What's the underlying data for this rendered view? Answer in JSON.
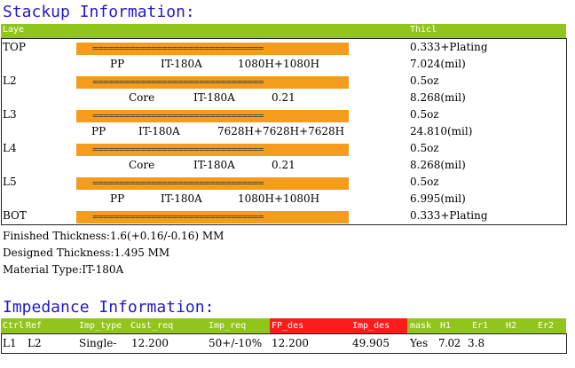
{
  "stackup": {
    "title": "Stackup Information:",
    "header": {
      "layer": "Laye",
      "thickness": "Thicl"
    },
    "rows": [
      {
        "layer": "TOP",
        "bar": "================================",
        "thickness": "0.333+Plating"
      },
      {
        "spec": [
          "PP",
          "IT-180A",
          "1080H+1080H"
        ],
        "thickness": "7.024(mil)"
      },
      {
        "layer": "L2",
        "bar": "================================",
        "thickness": "0.5oz"
      },
      {
        "spec": [
          "Core",
          "IT-180A",
          "0.21"
        ],
        "thickness": "8.268(mil)"
      },
      {
        "layer": "L3",
        "bar": "================================",
        "thickness": "0.5oz"
      },
      {
        "spec": [
          "PP",
          "IT-180A",
          "7628H+7628H+7628H"
        ],
        "thickness": "24.810(mil)"
      },
      {
        "layer": "L4",
        "bar": "================================",
        "thickness": "0.5oz"
      },
      {
        "spec": [
          "Core",
          "IT-180A",
          "0.21"
        ],
        "thickness": "8.268(mil)"
      },
      {
        "layer": "L5",
        "bar": "================================",
        "thickness": "0.5oz"
      },
      {
        "spec": [
          "PP",
          "IT-180A",
          "1080H+1080H"
        ],
        "thickness": "6.995(mil)"
      },
      {
        "layer": "BOT",
        "bar": "================================",
        "thickness": "0.333+Plating"
      }
    ],
    "finished": "Finished Thickness:1.6(+0.16/-0.16) MM",
    "designed": "Designed Thickness:1.495 MM",
    "material": "Material Type:IT-180A"
  },
  "impedance": {
    "title": "Impedance Information:",
    "headers": [
      "Ctrl",
      "Ref",
      "Imp_type",
      "Cust_req",
      "Imp_req",
      "FP_des",
      "Imp_des",
      "mask",
      "H1",
      "Er1",
      "H2",
      "Er2"
    ],
    "row": [
      "L1",
      "L2",
      "Single-",
      "12.200",
      "50+/-10%",
      "12.200",
      "49.905",
      "Yes",
      "7.02",
      "3.8"
    ]
  },
  "colors": {
    "header_green": "#92c51c",
    "bar_orange": "#f59c1c",
    "title_blue": "#2418c8",
    "highlight_red": "#ff1b1b"
  }
}
